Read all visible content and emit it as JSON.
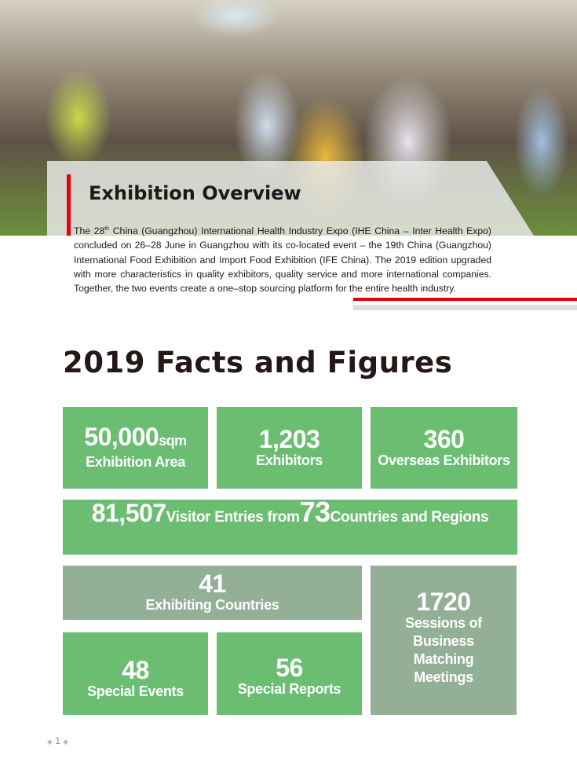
{
  "overview": {
    "title": "Exhibition Overview",
    "text_before_sup": "The 28",
    "sup": "th",
    "text_after_sup": " China (Guangzhou) International Health Industry Expo (IHE China – Inter Health Expo) concluded on 26–28 June in Guangzhou with its co-located event – the 19th China (Guangzhou) International Food Exhibition and Import Food Exhibition (IFE China). The 2019 edition upgraded with more characteristics in quality exhibitors, quality service and more international companies. Together, the two events create a one–stop sourcing platform for the entire health industry."
  },
  "facts": {
    "title": "2019 Facts and Figures",
    "area": {
      "value": "50,000",
      "unit": "sqm",
      "label": "Exhibition Area"
    },
    "exhibitors": {
      "value": "1,203",
      "label": "Exhibitors"
    },
    "overseas": {
      "value": "360",
      "label": "Overseas Exhibitors"
    },
    "visitors": {
      "value": "81,507",
      "label1": "Visitor Entries from",
      "countries": "73",
      "label2": "Countries and Regions"
    },
    "countries": {
      "value": "41",
      "label": "Exhibiting Countries"
    },
    "events": {
      "value": "48",
      "label": "Special Events"
    },
    "reports": {
      "value": "56",
      "label": "Special Reports"
    },
    "sessions": {
      "value": "1720",
      "label": "Sessions of Business Matching Meetings"
    }
  },
  "colors": {
    "green": "#6bbd72",
    "sage": "#93b096",
    "red": "#e60012"
  },
  "page_number": "1"
}
